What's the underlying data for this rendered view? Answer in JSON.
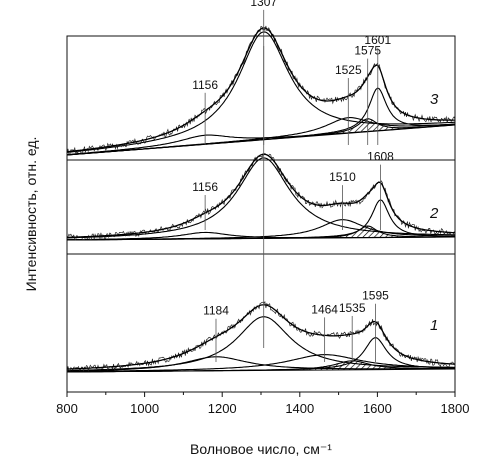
{
  "chart_data": {
    "type": "line",
    "xlabel": "Волновое число, см⁻¹",
    "ylabel": "Интенсивность, отн. ед.",
    "xlim": [
      800,
      1800
    ],
    "x_ticks": [
      "800",
      "1000",
      "1200",
      "1400",
      "1600",
      "1800"
    ],
    "y_ticks_labeled": false,
    "grid": false,
    "legend": "none",
    "series": [
      {
        "label": "1",
        "peaks": [
          {
            "position": 1184,
            "label": "1184",
            "amplitude": 0.11,
            "width": 200
          },
          {
            "position": 1307,
            "label": "",
            "amplitude": 0.42,
            "width": 170
          },
          {
            "position": 1464,
            "label": "1464",
            "amplitude": 0.12,
            "width": 230
          },
          {
            "position": 1535,
            "label": "1535",
            "amplitude": 0.07,
            "width": 110,
            "hatched": true
          },
          {
            "position": 1595,
            "label": "1595",
            "amplitude": 0.25,
            "width": 70
          }
        ]
      },
      {
        "label": "2",
        "peaks": [
          {
            "position": 1156,
            "label": "1156",
            "amplitude": 0.05,
            "width": 150
          },
          {
            "position": 1307,
            "label": "",
            "amplitude": 0.62,
            "width": 165
          },
          {
            "position": 1510,
            "label": "1510",
            "amplitude": 0.14,
            "width": 140
          },
          {
            "position": 1575,
            "label": "",
            "amplitude": 0.09,
            "width": 60,
            "hatched": true
          },
          {
            "position": 1608,
            "label": "1608",
            "amplitude": 0.29,
            "width": 55
          }
        ]
      },
      {
        "label": "3",
        "peaks": [
          {
            "position": 1156,
            "label": "1156",
            "amplitude": 0.07,
            "width": 160
          },
          {
            "position": 1307,
            "label": "1307",
            "amplitude": 0.83,
            "width": 160
          },
          {
            "position": 1525,
            "label": "1525",
            "amplitude": 0.12,
            "width": 140
          },
          {
            "position": 1575,
            "label": "1575",
            "amplitude": 0.1,
            "width": 60,
            "hatched": true
          },
          {
            "position": 1601,
            "label": "1601",
            "amplitude": 0.33,
            "width": 55
          }
        ]
      }
    ],
    "annotations": [
      "1307",
      "1156",
      "1525",
      "1575",
      "1601",
      "1510",
      "1608",
      "1184",
      "1464",
      "1535",
      "1595"
    ]
  }
}
